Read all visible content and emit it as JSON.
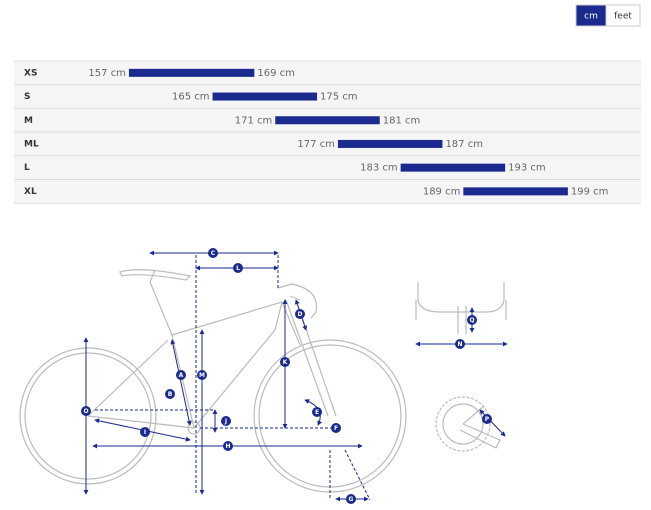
{
  "unit_toggle": {
    "options": [
      "cm",
      "feet"
    ],
    "active": 0
  },
  "chart_data": {
    "type": "range-bar",
    "categories": [
      "XS",
      "S",
      "M",
      "ML",
      "L",
      "XL"
    ],
    "low": [
      157,
      165,
      171,
      177,
      183,
      189
    ],
    "high": [
      169,
      175,
      181,
      187,
      193,
      199
    ],
    "low_labels": [
      "157 cm",
      "165 cm",
      "171 cm",
      "177 cm",
      "183 cm",
      "189 cm"
    ],
    "high_labels": [
      "169 cm",
      "175 cm",
      "181 cm",
      "187 cm",
      "193 cm",
      "199 cm"
    ],
    "color": "#1a2a8f",
    "xlim": [
      146,
      206
    ]
  },
  "diagram": {
    "markers": [
      "C",
      "L",
      "D",
      "A",
      "B",
      "M",
      "K",
      "O",
      "I",
      "J",
      "H",
      "E",
      "F",
      "G",
      "Q",
      "N",
      "P"
    ]
  }
}
